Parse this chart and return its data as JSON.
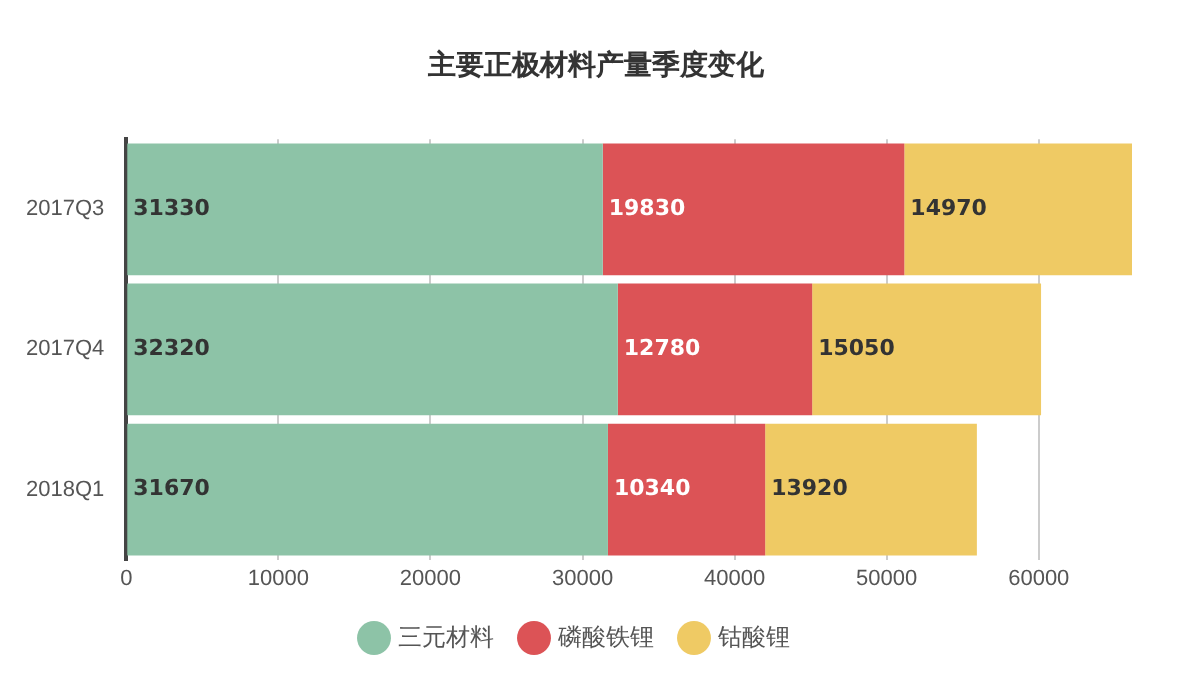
{
  "chart_data": {
    "type": "bar",
    "orientation": "horizontal",
    "stacked": true,
    "title": "主要正极材料产量季度变化",
    "categories": [
      "2017Q3",
      "2017Q4",
      "2018Q1"
    ],
    "series": [
      {
        "name": "三元材料",
        "color": "#8dc3a7",
        "values": [
          31330,
          32320,
          31670
        ]
      },
      {
        "name": "磷酸铁锂",
        "color": "#dc5356",
        "values": [
          19830,
          12780,
          10340
        ]
      },
      {
        "name": "钴酸锂",
        "color": "#efca64",
        "values": [
          14970,
          15050,
          13920
        ]
      }
    ],
    "xlim": [
      0,
      66130
    ],
    "xticks": [
      0,
      10000,
      20000,
      30000,
      40000,
      50000,
      60000
    ],
    "grid": "x",
    "legend": "bottom",
    "data_labels": true
  }
}
